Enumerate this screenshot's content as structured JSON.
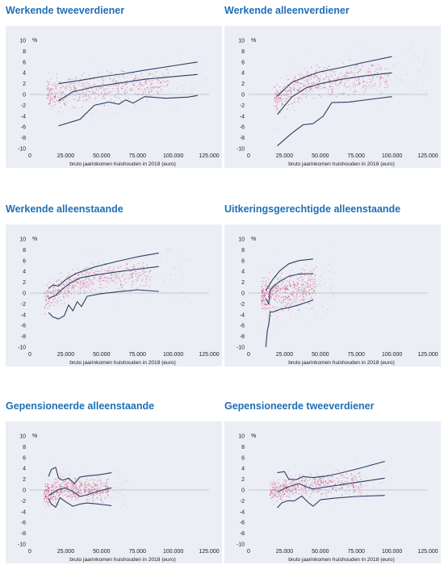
{
  "colors": {
    "title": "#1f6fb4",
    "line": "#2c3e63",
    "dots": "#cc1f5a",
    "background": "#ebeef4"
  },
  "chart_data": [
    {
      "type": "scatter",
      "title": "Werkende tweeverdiener",
      "xlabel": "bruto jaarinkomen huishouden in 2018 (euro)",
      "ylabel": "%",
      "xlim": [
        0,
        125000
      ],
      "ylim": [
        -10,
        10
      ],
      "x_ticks": [
        "0",
        "25.000",
        "50.000",
        "75.000",
        "100.000",
        "125.000"
      ],
      "y_ticks": [
        "10",
        "8",
        "6",
        "4",
        "2",
        "0",
        "-2",
        "-4",
        "-6",
        "-8",
        "-10"
      ],
      "scatter_region": {
        "x_range": [
          12000,
          125000
        ],
        "center": [
          [
            12000,
            0
          ],
          [
            50000,
            1.2
          ],
          [
            125000,
            3
          ]
        ],
        "spread": 1.6
      },
      "series": [
        {
          "role": "upper",
          "points": [
            [
              20000,
              2.0
            ],
            [
              35000,
              2.6
            ],
            [
              50000,
              3.3
            ],
            [
              65000,
              3.8
            ],
            [
              80000,
              4.5
            ],
            [
              100000,
              5.3
            ],
            [
              117000,
              6.0
            ]
          ]
        },
        {
          "role": "median",
          "points": [
            [
              20000,
              -1.2
            ],
            [
              30000,
              0.5
            ],
            [
              45000,
              1.4
            ],
            [
              60000,
              2.0
            ],
            [
              80000,
              2.8
            ],
            [
              100000,
              3.3
            ],
            [
              117000,
              3.7
            ]
          ]
        },
        {
          "role": "lower",
          "points": [
            [
              20000,
              -5.8
            ],
            [
              35000,
              -4.6
            ],
            [
              45000,
              -2.0
            ],
            [
              55000,
              -1.4
            ],
            [
              62000,
              -1.8
            ],
            [
              67000,
              -1.0
            ],
            [
              72000,
              -1.6
            ],
            [
              80000,
              -0.4
            ],
            [
              95000,
              -0.7
            ],
            [
              110000,
              -0.5
            ],
            [
              117000,
              -0.2
            ]
          ]
        }
      ]
    },
    {
      "type": "scatter",
      "title": "Werkende alleenverdiener",
      "xlabel": "bruto jaarinkomen huishouden in 2018 (euro)",
      "ylabel": "%",
      "xlim": [
        0,
        125000
      ],
      "ylim": [
        -10,
        10
      ],
      "x_ticks": [
        "0",
        "25.000",
        "50.000",
        "75.000",
        "100.000",
        "125.000"
      ],
      "y_ticks": [
        "10",
        "8",
        "6",
        "4",
        "2",
        "0",
        "-2",
        "-4",
        "-6",
        "-8",
        "-10"
      ],
      "scatter_region": {
        "x_range": [
          18000,
          125000
        ],
        "center": [
          [
            18000,
            -1
          ],
          [
            40000,
            2
          ],
          [
            125000,
            4.5
          ]
        ],
        "spread": 1.7
      },
      "series": [
        {
          "role": "upper",
          "points": [
            [
              20000,
              -0.3
            ],
            [
              30000,
              2.2
            ],
            [
              40000,
              3.3
            ],
            [
              50000,
              4.2
            ],
            [
              65000,
              5.0
            ],
            [
              80000,
              5.9
            ],
            [
              100000,
              7.0
            ]
          ]
        },
        {
          "role": "median",
          "points": [
            [
              20000,
              -3.7
            ],
            [
              30000,
              -0.5
            ],
            [
              40000,
              1.2
            ],
            [
              50000,
              2.0
            ],
            [
              65000,
              2.8
            ],
            [
              80000,
              3.4
            ],
            [
              100000,
              4.0
            ]
          ]
        },
        {
          "role": "lower",
          "points": [
            [
              20000,
              -9.5
            ],
            [
              30000,
              -7.2
            ],
            [
              38000,
              -5.6
            ],
            [
              45000,
              -5.4
            ],
            [
              52000,
              -4.0
            ],
            [
              58000,
              -1.5
            ],
            [
              70000,
              -1.4
            ],
            [
              85000,
              -0.9
            ],
            [
              100000,
              -0.4
            ]
          ]
        }
      ]
    },
    {
      "type": "scatter",
      "title": "Werkende alleenstaande",
      "xlabel": "bruto jaarinkomen huishouden in 2018 (euro)",
      "ylabel": "%",
      "xlim": [
        0,
        125000
      ],
      "ylim": [
        -10,
        10
      ],
      "x_ticks": [
        "0",
        "25.000",
        "50.000",
        "75.000",
        "100.000",
        "125.000"
      ],
      "y_ticks": [
        "10",
        "8",
        "6",
        "4",
        "2",
        "0",
        "-2",
        "-4",
        "-6",
        "-8",
        "-10"
      ],
      "scatter_region": {
        "x_range": [
          10000,
          110000
        ],
        "center": [
          [
            10000,
            -1
          ],
          [
            35000,
            2.5
          ],
          [
            110000,
            4
          ]
        ],
        "spread": 1.5
      },
      "series": [
        {
          "role": "upper",
          "points": [
            [
              13000,
              0.8
            ],
            [
              16000,
              1.5
            ],
            [
              20000,
              1.3
            ],
            [
              25000,
              2.5
            ],
            [
              32000,
              3.6
            ],
            [
              45000,
              4.8
            ],
            [
              60000,
              5.8
            ],
            [
              75000,
              6.7
            ],
            [
              90000,
              7.4
            ]
          ]
        },
        {
          "role": "median",
          "points": [
            [
              13000,
              -1.0
            ],
            [
              18000,
              -0.4
            ],
            [
              22000,
              0.6
            ],
            [
              28000,
              1.8
            ],
            [
              35000,
              2.8
            ],
            [
              45000,
              3.3
            ],
            [
              60000,
              3.9
            ],
            [
              75000,
              4.4
            ],
            [
              90000,
              4.9
            ]
          ]
        },
        {
          "role": "lower",
          "points": [
            [
              13000,
              -3.6
            ],
            [
              16000,
              -4.4
            ],
            [
              20000,
              -4.8
            ],
            [
              24000,
              -4.2
            ],
            [
              27000,
              -2.2
            ],
            [
              30000,
              -3.3
            ],
            [
              33000,
              -1.6
            ],
            [
              36000,
              -2.5
            ],
            [
              40000,
              -0.6
            ],
            [
              48000,
              -0.2
            ],
            [
              60000,
              0.2
            ],
            [
              75000,
              0.6
            ],
            [
              90000,
              0.3
            ]
          ]
        }
      ]
    },
    {
      "type": "scatter",
      "title": "Uitkeringsgerechtigde alleenstaande",
      "xlabel": "bruto jaarinkomen huishouden in 2018 (euro)",
      "ylabel": "%",
      "xlim": [
        0,
        125000
      ],
      "ylim": [
        -10,
        10
      ],
      "x_ticks": [
        "0",
        "25.000",
        "50.000",
        "75.000",
        "100.000",
        "125.000"
      ],
      "y_ticks": [
        "10",
        "8",
        "6",
        "4",
        "2",
        "0",
        "-2",
        "-4",
        "-6",
        "-8",
        "-10"
      ],
      "scatter_region": {
        "x_range": [
          9000,
          60000
        ],
        "center": [
          [
            9000,
            -1
          ],
          [
            15000,
            0
          ],
          [
            60000,
            2
          ]
        ],
        "spread": 2
      },
      "series": [
        {
          "role": "upper",
          "points": [
            [
              12000,
              0.5
            ],
            [
              14000,
              1.3
            ],
            [
              17000,
              2.6
            ],
            [
              22000,
              4.2
            ],
            [
              28000,
              5.4
            ],
            [
              35000,
              6.0
            ],
            [
              45000,
              6.3
            ]
          ]
        },
        {
          "role": "median",
          "points": [
            [
              12000,
              -1.0
            ],
            [
              14000,
              -2.0
            ],
            [
              15000,
              0.5
            ],
            [
              18000,
              1.4
            ],
            [
              22000,
              2.2
            ],
            [
              28000,
              3.1
            ],
            [
              35000,
              3.5
            ],
            [
              45000,
              3.6
            ]
          ]
        },
        {
          "role": "lower",
          "points": [
            [
              12000,
              -10.0
            ],
            [
              13000,
              -7.0
            ],
            [
              14000,
              -5.8
            ],
            [
              15000,
              -3.5
            ],
            [
              17000,
              -3.5
            ],
            [
              22000,
              -3.0
            ],
            [
              28000,
              -2.7
            ],
            [
              35000,
              -2.2
            ],
            [
              45000,
              -1.3
            ]
          ]
        }
      ]
    },
    {
      "type": "scatter",
      "title": "Gepensioneerde alleenstaande",
      "xlabel": "bruto jaarinkomen huishouden in 2018 (euro)",
      "ylabel": "%",
      "xlim": [
        0,
        125000
      ],
      "ylim": [
        -10,
        10
      ],
      "x_ticks": [
        "0",
        "25.000",
        "50.000",
        "75.000",
        "100.000",
        "125.000"
      ],
      "y_ticks": [
        "10",
        "8",
        "6",
        "4",
        "2",
        "0",
        "-2",
        "-4",
        "-6",
        "-8",
        "-10"
      ],
      "scatter_region": {
        "x_range": [
          10000,
          70000
        ],
        "center": [
          [
            10000,
            -1
          ],
          [
            20000,
            0.2
          ],
          [
            70000,
            0
          ]
        ],
        "spread": 1.3
      },
      "series": [
        {
          "role": "upper",
          "points": [
            [
              13000,
              2.5
            ],
            [
              15000,
              3.8
            ],
            [
              18000,
              4.2
            ],
            [
              20000,
              2.2
            ],
            [
              23000,
              1.8
            ],
            [
              27000,
              2.2
            ],
            [
              31000,
              1.2
            ],
            [
              35000,
              2.4
            ],
            [
              40000,
              2.6
            ],
            [
              48000,
              2.8
            ],
            [
              57000,
              3.2
            ]
          ]
        },
        {
          "role": "median",
          "points": [
            [
              13000,
              -1.0
            ],
            [
              16000,
              -0.6
            ],
            [
              20000,
              0.1
            ],
            [
              25000,
              0.4
            ],
            [
              30000,
              -0.3
            ],
            [
              35000,
              -1.2
            ],
            [
              40000,
              -0.9
            ],
            [
              48000,
              -0.2
            ],
            [
              57000,
              0.4
            ]
          ]
        },
        {
          "role": "lower",
          "points": [
            [
              13000,
              -1.6
            ],
            [
              15000,
              -2.6
            ],
            [
              18000,
              -3.2
            ],
            [
              21000,
              -1.4
            ],
            [
              25000,
              -2.2
            ],
            [
              30000,
              -3.0
            ],
            [
              35000,
              -2.6
            ],
            [
              40000,
              -2.4
            ],
            [
              48000,
              -2.6
            ],
            [
              57000,
              -2.9
            ]
          ]
        }
      ]
    },
    {
      "type": "scatter",
      "title": "Gepensioneerde tweeverdiener",
      "xlabel": "bruto jaarinkomen huishouden in 2018 (euro)",
      "ylabel": "%",
      "xlim": [
        0,
        125000
      ],
      "ylim": [
        -10,
        10
      ],
      "x_ticks": [
        "0",
        "25.000",
        "50.000",
        "75.000",
        "100.000",
        "125.000"
      ],
      "y_ticks": [
        "10",
        "8",
        "6",
        "4",
        "2",
        "0",
        "-2",
        "-4",
        "-6",
        "-8",
        "-10"
      ],
      "scatter_region": {
        "x_range": [
          15000,
          100000
        ],
        "center": [
          [
            15000,
            -0.5
          ],
          [
            35000,
            1
          ],
          [
            100000,
            1.5
          ]
        ],
        "spread": 1.2
      },
      "series": [
        {
          "role": "upper",
          "points": [
            [
              20000,
              3.2
            ],
            [
              25000,
              3.4
            ],
            [
              28000,
              2.0
            ],
            [
              33000,
              1.9
            ],
            [
              38000,
              2.5
            ],
            [
              45000,
              2.3
            ],
            [
              55000,
              2.6
            ],
            [
              65000,
              3.2
            ],
            [
              80000,
              4.2
            ],
            [
              95000,
              5.3
            ]
          ]
        },
        {
          "role": "median",
          "points": [
            [
              20000,
              -0.4
            ],
            [
              25000,
              0.3
            ],
            [
              30000,
              0.8
            ],
            [
              35000,
              1.2
            ],
            [
              40000,
              0.6
            ],
            [
              45000,
              0.2
            ],
            [
              55000,
              0.6
            ],
            [
              65000,
              1.0
            ],
            [
              80000,
              1.6
            ],
            [
              95000,
              2.2
            ]
          ]
        },
        {
          "role": "lower",
          "points": [
            [
              20000,
              -3.3
            ],
            [
              23000,
              -2.4
            ],
            [
              27000,
              -2.0
            ],
            [
              32000,
              -2.0
            ],
            [
              37000,
              -1.1
            ],
            [
              42000,
              -2.4
            ],
            [
              45000,
              -3.0
            ],
            [
              50000,
              -1.8
            ],
            [
              60000,
              -1.5
            ],
            [
              75000,
              -1.2
            ],
            [
              95000,
              -1.0
            ]
          ]
        }
      ]
    }
  ]
}
